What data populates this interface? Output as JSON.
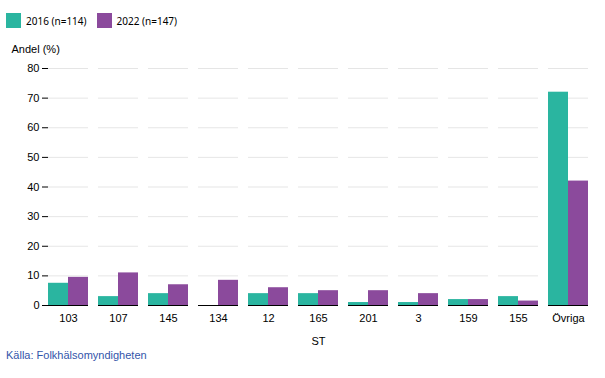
{
  "chart_data": {
    "type": "bar",
    "categories": [
      "103",
      "107",
      "145",
      "134",
      "12",
      "165",
      "201",
      "3",
      "159",
      "155",
      "Övriga"
    ],
    "series": [
      {
        "name": "2016 (n=114)",
        "color": "#2ab5a0",
        "values": [
          7.5,
          3.0,
          4.0,
          0,
          4.0,
          4.0,
          1.0,
          1.0,
          2.0,
          3.0,
          72.0
        ]
      },
      {
        "name": "2022 (n=147)",
        "color": "#8b4a9c",
        "values": [
          9.5,
          11.0,
          7.0,
          8.5,
          6.0,
          5.0,
          5.0,
          4.0,
          2.0,
          1.5,
          42.0
        ]
      }
    ],
    "xlabel": "ST",
    "ylabel": "Andel (%)",
    "ylim": [
      0,
      80
    ],
    "yticks": [
      0,
      10,
      20,
      30,
      40,
      50,
      60,
      70,
      80
    ],
    "grid": true,
    "legend": "top",
    "annotations": [
      "Källa: Folkhälsomyndigheten"
    ]
  }
}
